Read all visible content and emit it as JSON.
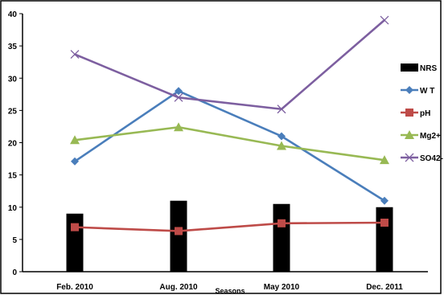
{
  "chart_data": {
    "type": "bar+line",
    "title": "",
    "xlabel": "Seasons",
    "ylabel": "",
    "ylim": [
      0,
      40
    ],
    "yticks": [
      0,
      5,
      10,
      15,
      20,
      25,
      30,
      35,
      40
    ],
    "categories": [
      "Feb. 2010",
      "Aug. 2010",
      "May 2010",
      "Dec. 2011"
    ],
    "grid": false,
    "legend_position": "right",
    "series": [
      {
        "name": "NRS",
        "kind": "bar",
        "color": "#000000",
        "marker": "none",
        "values": [
          9,
          11,
          10.5,
          10
        ]
      },
      {
        "name": "W T",
        "kind": "line",
        "color": "#4a7ebb",
        "marker": "diamond",
        "values": [
          17.1,
          28,
          21,
          11
        ]
      },
      {
        "name": "pH",
        "kind": "line",
        "color": "#be4b48",
        "marker": "square",
        "values": [
          6.9,
          6.3,
          7.5,
          7.6
        ]
      },
      {
        "name": "Mg2+",
        "kind": "line",
        "color": "#98b954",
        "marker": "triangle",
        "values": [
          20.4,
          22.4,
          19.5,
          17.3
        ]
      },
      {
        "name": "SO42-",
        "kind": "line",
        "color": "#7d5fa0",
        "marker": "x",
        "values": [
          33.7,
          27,
          25.2,
          39
        ]
      }
    ]
  }
}
